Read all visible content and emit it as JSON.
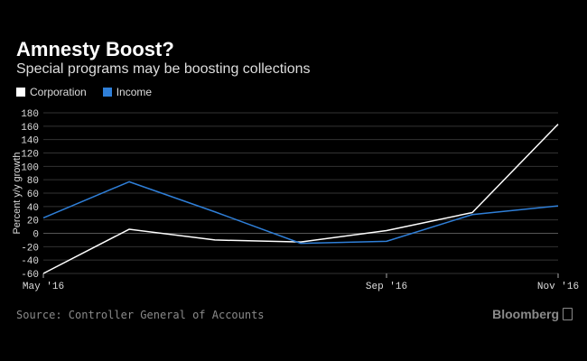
{
  "title": "Amnesty Boost?",
  "subtitle": "Special programs may be boosting collections",
  "source": "Source: Controller General of Accounts",
  "brand": "Bloomberg",
  "colors": {
    "corporation": "#ffffff",
    "income": "#2f7fd8",
    "grid": "#333333",
    "text": "#dddddd",
    "muted": "#8a8a8a"
  },
  "chart_data": {
    "type": "line",
    "x": [
      "2016-05",
      "2016-06",
      "2016-07",
      "2016-08",
      "2016-09",
      "2016-10",
      "2016-11"
    ],
    "xtick_labels": [
      {
        "x": "2016-05",
        "label": "May '16"
      },
      {
        "x": "2016-09",
        "label": "Sep '16"
      },
      {
        "x": "2016-11",
        "label": "Nov '16"
      }
    ],
    "series": [
      {
        "name": "Corporation",
        "values": [
          -60,
          6,
          -10,
          -13,
          4,
          31,
          163
        ]
      },
      {
        "name": "Income",
        "values": [
          23,
          77,
          32,
          -15,
          -12,
          28,
          41
        ]
      }
    ],
    "title": "Amnesty Boost?",
    "ylabel": "Percent y/y growth",
    "ylim": [
      -60,
      180
    ],
    "yticks": [
      -60,
      -40,
      -20,
      0,
      20,
      40,
      60,
      80,
      100,
      120,
      140,
      160,
      180
    ],
    "grid": true,
    "legend": "top-left"
  }
}
